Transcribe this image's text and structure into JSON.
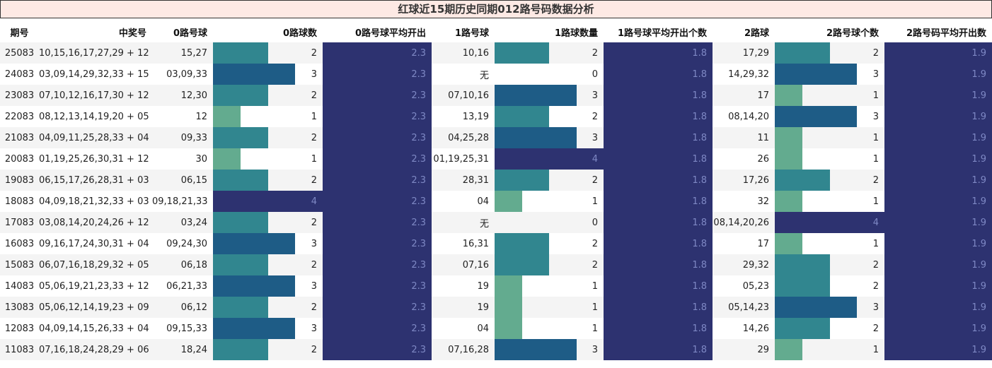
{
  "title": "红球近15期历史同期012路号码数据分析",
  "headers": [
    "期号",
    "中奖号",
    "0路号球",
    "0路球数",
    "0路号球平均开出",
    "1路号球",
    "1路球数量",
    "1路号球平均开出个数",
    "2路球",
    "2路号球个数",
    "2路号码平均开出数"
  ],
  "colors": {
    "bar_1": "#63ab8f",
    "bar_2": "#31868f",
    "bar_3": "#1e5c86",
    "bar_4_and_avg": "#2d3270",
    "title_bg": "#fde9e4"
  },
  "bar_max": 4,
  "rows": [
    {
      "issue": "25083",
      "numbers": "10,15,16,17,27,29 + 12",
      "r0": "15,27",
      "r0n": "2",
      "r0avg": "2.3",
      "r1": "10,16",
      "r1n": "2",
      "r1avg": "1.8",
      "r2": "17,29",
      "r2n": "2",
      "r2avg": "1.9"
    },
    {
      "issue": "24083",
      "numbers": "03,09,14,29,32,33 + 15",
      "r0": "03,09,33",
      "r0n": "3",
      "r0avg": "2.3",
      "r1": "无",
      "r1n": "0",
      "r1avg": "1.8",
      "r2": "14,29,32",
      "r2n": "3",
      "r2avg": "1.9"
    },
    {
      "issue": "23083",
      "numbers": "07,10,12,16,17,30 + 12",
      "r0": "12,30",
      "r0n": "2",
      "r0avg": "2.3",
      "r1": "07,10,16",
      "r1n": "3",
      "r1avg": "1.8",
      "r2": "17",
      "r2n": "1",
      "r2avg": "1.9"
    },
    {
      "issue": "22083",
      "numbers": "08,12,13,14,19,20 + 05",
      "r0": "12",
      "r0n": "1",
      "r0avg": "2.3",
      "r1": "13,19",
      "r1n": "2",
      "r1avg": "1.8",
      "r2": "08,14,20",
      "r2n": "3",
      "r2avg": "1.9"
    },
    {
      "issue": "21083",
      "numbers": "04,09,11,25,28,33 + 04",
      "r0": "09,33",
      "r0n": "2",
      "r0avg": "2.3",
      "r1": "04,25,28",
      "r1n": "3",
      "r1avg": "1.8",
      "r2": "11",
      "r2n": "1",
      "r2avg": "1.9"
    },
    {
      "issue": "20083",
      "numbers": "01,19,25,26,30,31 + 12",
      "r0": "30",
      "r0n": "1",
      "r0avg": "2.3",
      "r1": "01,19,25,31",
      "r1n": "4",
      "r1avg": "1.8",
      "r2": "26",
      "r2n": "1",
      "r2avg": "1.9"
    },
    {
      "issue": "19083",
      "numbers": "06,15,17,26,28,31 + 03",
      "r0": "06,15",
      "r0n": "2",
      "r0avg": "2.3",
      "r1": "28,31",
      "r1n": "2",
      "r1avg": "1.8",
      "r2": "17,26",
      "r2n": "2",
      "r2avg": "1.9"
    },
    {
      "issue": "18083",
      "numbers": "04,09,18,21,32,33 + 03",
      "r0": "09,18,21,33",
      "r0n": "4",
      "r0avg": "2.3",
      "r1": "04",
      "r1n": "1",
      "r1avg": "1.8",
      "r2": "32",
      "r2n": "1",
      "r2avg": "1.9"
    },
    {
      "issue": "17083",
      "numbers": "03,08,14,20,24,26 + 12",
      "r0": "03,24",
      "r0n": "2",
      "r0avg": "2.3",
      "r1": "无",
      "r1n": "0",
      "r1avg": "1.8",
      "r2": "08,14,20,26",
      "r2n": "4",
      "r2avg": "1.9"
    },
    {
      "issue": "16083",
      "numbers": "09,16,17,24,30,31 + 04",
      "r0": "09,24,30",
      "r0n": "3",
      "r0avg": "2.3",
      "r1": "16,31",
      "r1n": "2",
      "r1avg": "1.8",
      "r2": "17",
      "r2n": "1",
      "r2avg": "1.9"
    },
    {
      "issue": "15083",
      "numbers": "06,07,16,18,29,32 + 05",
      "r0": "06,18",
      "r0n": "2",
      "r0avg": "2.3",
      "r1": "07,16",
      "r1n": "2",
      "r1avg": "1.8",
      "r2": "29,32",
      "r2n": "2",
      "r2avg": "1.9"
    },
    {
      "issue": "14083",
      "numbers": "05,06,19,21,23,33 + 12",
      "r0": "06,21,33",
      "r0n": "3",
      "r0avg": "2.3",
      "r1": "19",
      "r1n": "1",
      "r1avg": "1.8",
      "r2": "05,23",
      "r2n": "2",
      "r2avg": "1.9"
    },
    {
      "issue": "13083",
      "numbers": "05,06,12,14,19,23 + 09",
      "r0": "06,12",
      "r0n": "2",
      "r0avg": "2.3",
      "r1": "19",
      "r1n": "1",
      "r1avg": "1.8",
      "r2": "05,14,23",
      "r2n": "3",
      "r2avg": "1.9"
    },
    {
      "issue": "12083",
      "numbers": "04,09,14,15,26,33 + 04",
      "r0": "09,15,33",
      "r0n": "3",
      "r0avg": "2.3",
      "r1": "04",
      "r1n": "1",
      "r1avg": "1.8",
      "r2": "14,26",
      "r2n": "2",
      "r2avg": "1.9"
    },
    {
      "issue": "11083",
      "numbers": "07,16,18,24,28,29 + 06",
      "r0": "18,24",
      "r0n": "2",
      "r0avg": "2.3",
      "r1": "07,16,28",
      "r1n": "3",
      "r1avg": "1.8",
      "r2": "29",
      "r2n": "1",
      "r2avg": "1.9"
    }
  ]
}
